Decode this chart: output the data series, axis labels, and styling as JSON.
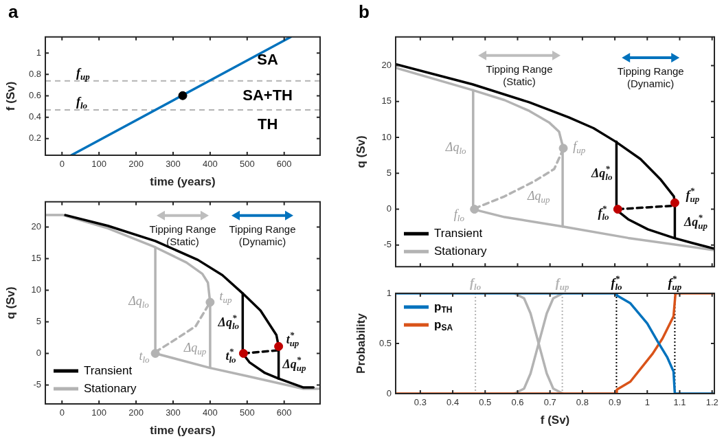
{
  "chart_data": [
    {
      "type": "line",
      "title": "a",
      "xlabel": "time (years)",
      "ylabel": "f (Sv)",
      "xlim": [
        -45,
        697
      ],
      "ylim": [
        0.045,
        1.15
      ],
      "xticks": [
        0,
        100,
        200,
        300,
        400,
        500,
        600
      ],
      "yticks": [
        0.2,
        0.4,
        0.6,
        0.8,
        1
      ],
      "series": [
        {
          "type": "scatter",
          "color": "#000000",
          "marker": "circle",
          "x": [
            326
          ],
          "values": [
            0.602
          ]
        },
        {
          "color": "#0072bd",
          "x": [
            25,
            618
          ],
          "values": [
            0.045,
            1.15
          ]
        }
      ],
      "ref_lines": [
        {
          "axis": "y",
          "value": 0.739,
          "label": "f$_{up}$",
          "color": "#b3b3b3",
          "line_style": "dashed"
        },
        {
          "axis": "y",
          "value": 0.469,
          "label": "f$_{lo}$",
          "color": "#b3b3b3",
          "line_style": "dashed"
        }
      ],
      "annotations": [
        "SA",
        "SA+TH",
        "TH"
      ]
    },
    {
      "type": "line",
      "xlabel": "time (years)",
      "ylabel": "q (Sv)",
      "xlim": [
        -45,
        697
      ],
      "ylim": [
        -8,
        24
      ],
      "xticks": [
        0,
        100,
        200,
        300,
        400,
        500,
        600
      ],
      "yticks": [
        -5,
        0,
        5,
        10,
        15,
        20
      ],
      "legend": "bottom left",
      "series": [
        {
          "type": "scatter",
          "color": "#c00000",
          "marker": "circle",
          "x": [
            490,
            585
          ],
          "values": [
            0,
            1.1
          ]
        },
        {
          "type": "scatter",
          "color": "#b3b3b3",
          "marker": "circle",
          "x": [
            252,
            400
          ],
          "values": [
            0,
            8.1
          ]
        },
        {
          "name": "Transient",
          "color": "#000000",
          "x": [
            9,
            124,
            252,
            367,
            433,
            488,
            536,
            579,
            585
          ],
          "values": [
            21.9,
            20.2,
            17.8,
            14.8,
            12.4,
            9.5,
            6.8,
            2.9,
            1.1
          ]
        },
        {
          "color": "#000000",
          "x": [
            488,
            506,
            548,
            585,
            652,
            679
          ],
          "values": [
            0,
            -1.4,
            -3.1,
            -4.0,
            -5.4,
            -5.4
          ]
        },
        {
          "color": "#000000",
          "x": [
            488,
            488
          ],
          "values": [
            0,
            9.5
          ]
        },
        {
          "color": "#000000",
          "x": [
            585,
            585
          ],
          "values": [
            -4.0,
            1.1
          ]
        },
        {
          "color": "#000000",
          "line_style": "dashed",
          "x": [
            490,
            585
          ],
          "values": [
            0,
            0.5
          ]
        },
        {
          "name": "Stationary",
          "color": "#b3b3b3",
          "x": [
            -45,
            3,
            124,
            252,
            336,
            379,
            394,
            400
          ],
          "values": [
            21.9,
            21.9,
            19.8,
            16.8,
            14.4,
            12.6,
            11.2,
            8.1
          ]
        },
        {
          "color": "#b3b3b3",
          "x": [
            252,
            400,
            500,
            652,
            697
          ],
          "values": [
            0,
            -2.3,
            -3.6,
            -5.6,
            -5.6
          ]
        },
        {
          "color": "#b3b3b3",
          "line_style": "dashed",
          "x": [
            252,
            306,
            361,
            400
          ],
          "values": [
            0.2,
            2.2,
            4.3,
            8.1
          ]
        },
        {
          "color": "#b3b3b3",
          "x": [
            252,
            252
          ],
          "values": [
            0,
            16.8
          ]
        },
        {
          "color": "#b3b3b3",
          "x": [
            400,
            400
          ],
          "values": [
            -2.3,
            8.1
          ]
        }
      ],
      "annotations": [
        "Tipping Range\n(Static)",
        "Tipping Range\n(Dynamic)",
        "Δq$_{lo}$",
        "t$_{up}$",
        "Δq$^{*}$$_{lo}$",
        "t$^{*}$$_{up}$",
        "Δq$_{up}$",
        "t$_{lo}$",
        "t$^{*}$$_{lo}$",
        "Δq$^{*}$$_{up}$"
      ]
    },
    {
      "type": "line",
      "title": "b",
      "ylabel": "q (Sv)",
      "xlim": [
        0.224,
        1.207
      ],
      "ylim": [
        -8,
        24
      ],
      "xticks": [
        0.3,
        0.4,
        0.5,
        0.6,
        0.7,
        0.8,
        0.9,
        1,
        1.1,
        1.2
      ],
      "yticks": [
        -5,
        0,
        5,
        10,
        15,
        20
      ],
      "tick_labels": "y",
      "legend": "bottom left",
      "series": [
        {
          "type": "scatter",
          "color": "#c00000",
          "marker": "circle",
          "x": [
            0.909,
            1.085
          ],
          "values": [
            0,
            0.9
          ]
        },
        {
          "type": "scatter",
          "color": "#b3b3b3",
          "marker": "circle",
          "x": [
            0.467,
            0.741
          ],
          "values": [
            0,
            8.5
          ]
        },
        {
          "name": "Transient",
          "color": "#000000",
          "x": [
            0.224,
            0.461,
            0.636,
            0.758,
            0.834,
            0.903,
            0.979,
            1.04,
            1.082,
            1.085
          ],
          "values": [
            20.2,
            17.4,
            14.9,
            12.8,
            11.3,
            9.4,
            7.0,
            4.2,
            1.8,
            0.9
          ]
        },
        {
          "color": "#000000",
          "x": [
            0.905,
            0.941,
            1.002,
            1.082,
            1.139,
            1.207
          ],
          "values": [
            -0.1,
            -1.4,
            -2.8,
            -4.0,
            -4.7,
            -5.5
          ]
        },
        {
          "color": "#000000",
          "x": [
            0.905,
            0.905
          ],
          "values": [
            -0.1,
            9.4
          ]
        },
        {
          "color": "#000000",
          "x": [
            1.085,
            1.085
          ],
          "values": [
            -4.0,
            0.9
          ]
        },
        {
          "color": "#000000",
          "line_style": "dashed",
          "x": [
            0.909,
            1.085
          ],
          "values": [
            0,
            0.5
          ]
        },
        {
          "name": "Stationary",
          "color": "#b3b3b3",
          "x": [
            0.224,
            0.461,
            0.56,
            0.636,
            0.697,
            0.728,
            0.741
          ],
          "values": [
            19.7,
            16.6,
            15.2,
            13.7,
            12.1,
            10.8,
            8.5
          ]
        },
        {
          "color": "#b3b3b3",
          "x": [
            0.463,
            0.56,
            0.739,
            0.941,
            1.207
          ],
          "values": [
            0,
            -1.1,
            -2.4,
            -4.0,
            -5.7
          ]
        },
        {
          "color": "#b3b3b3",
          "line_style": "dashed",
          "x": [
            0.467,
            0.56,
            0.652,
            0.713,
            0.741
          ],
          "values": [
            0.1,
            1.8,
            3.9,
            5.6,
            8.4
          ]
        },
        {
          "color": "#b3b3b3",
          "x": [
            0.463,
            0.463
          ],
          "values": [
            0,
            16.6
          ]
        },
        {
          "color": "#b3b3b3",
          "x": [
            0.739,
            0.739
          ],
          "values": [
            -2.4,
            8.4
          ]
        }
      ],
      "annotations": [
        "Tipping Range\n(Static)",
        "Tipping Range\n(Dynamic)",
        "Δq$_{lo}$",
        "f$_{up}$",
        "Δq$^{*}$$_{lo}$",
        "f$^{*}$$_{up}$",
        "Δq$_{up}$",
        "f$_{lo}$",
        "f$^{*}$$_{lo}$",
        "Δq$^{*}$$_{up}$"
      ]
    },
    {
      "type": "line",
      "xlabel": "f (Sv)",
      "ylabel": "Probability",
      "xlim": [
        0.224,
        1.207
      ],
      "ylim": [
        0,
        1
      ],
      "xticks": [
        0.3,
        0.4,
        0.5,
        0.6,
        0.7,
        0.8,
        0.9,
        1,
        1.1,
        1.2
      ],
      "yticks": [
        0,
        0.5,
        1
      ],
      "legend": "top left",
      "series": [
        {
          "name": "p$_{TH}$",
          "color": "#0072bd",
          "x": [
            0.224,
            0.905,
            0.906,
            0.948,
            1.0,
            1.032,
            1.062,
            1.081,
            1.085,
            1.207
          ],
          "values": [
            1,
            1,
            0.98,
            0.9,
            0.7,
            0.52,
            0.36,
            0.22,
            0,
            0
          ]
        },
        {
          "name": "p$_{SA}$",
          "color": "#d95319",
          "x": [
            0.224,
            0.905,
            0.906,
            0.948,
            1.017,
            1.047,
            1.081,
            1.087,
            1.207
          ],
          "values": [
            0,
            0,
            0.04,
            0.12,
            0.4,
            0.55,
            0.77,
            1,
            1
          ]
        },
        {
          "color": "#b3b3b3",
          "x": [
            0.59,
            0.62,
            0.64,
            0.665,
            0.69,
            0.71,
            0.74
          ],
          "values": [
            1,
            0.95,
            0.8,
            0.5,
            0.2,
            0.05,
            0
          ]
        },
        {
          "color": "#b3b3b3",
          "x": [
            0.59,
            0.62,
            0.64,
            0.665,
            0.69,
            0.71,
            0.74
          ],
          "values": [
            0,
            0.05,
            0.2,
            0.5,
            0.8,
            0.95,
            1
          ]
        }
      ],
      "ref_lines": [
        {
          "axis": "x",
          "value": 0.47,
          "label": "f$_{lo}$",
          "color": "#b3b3b3",
          "line_style": "dotted"
        },
        {
          "axis": "x",
          "value": 0.738,
          "label": "f$_{up}$",
          "color": "#b3b3b3",
          "line_style": "dotted"
        },
        {
          "axis": "x",
          "value": 0.905,
          "label": "f$^{*}$$_{lo}$",
          "color": "#000000",
          "line_style": "dotted"
        },
        {
          "axis": "x",
          "value": 1.085,
          "label": "f$^{*}$$_{up}$",
          "color": "#000000",
          "line_style": "dotted"
        }
      ]
    }
  ]
}
